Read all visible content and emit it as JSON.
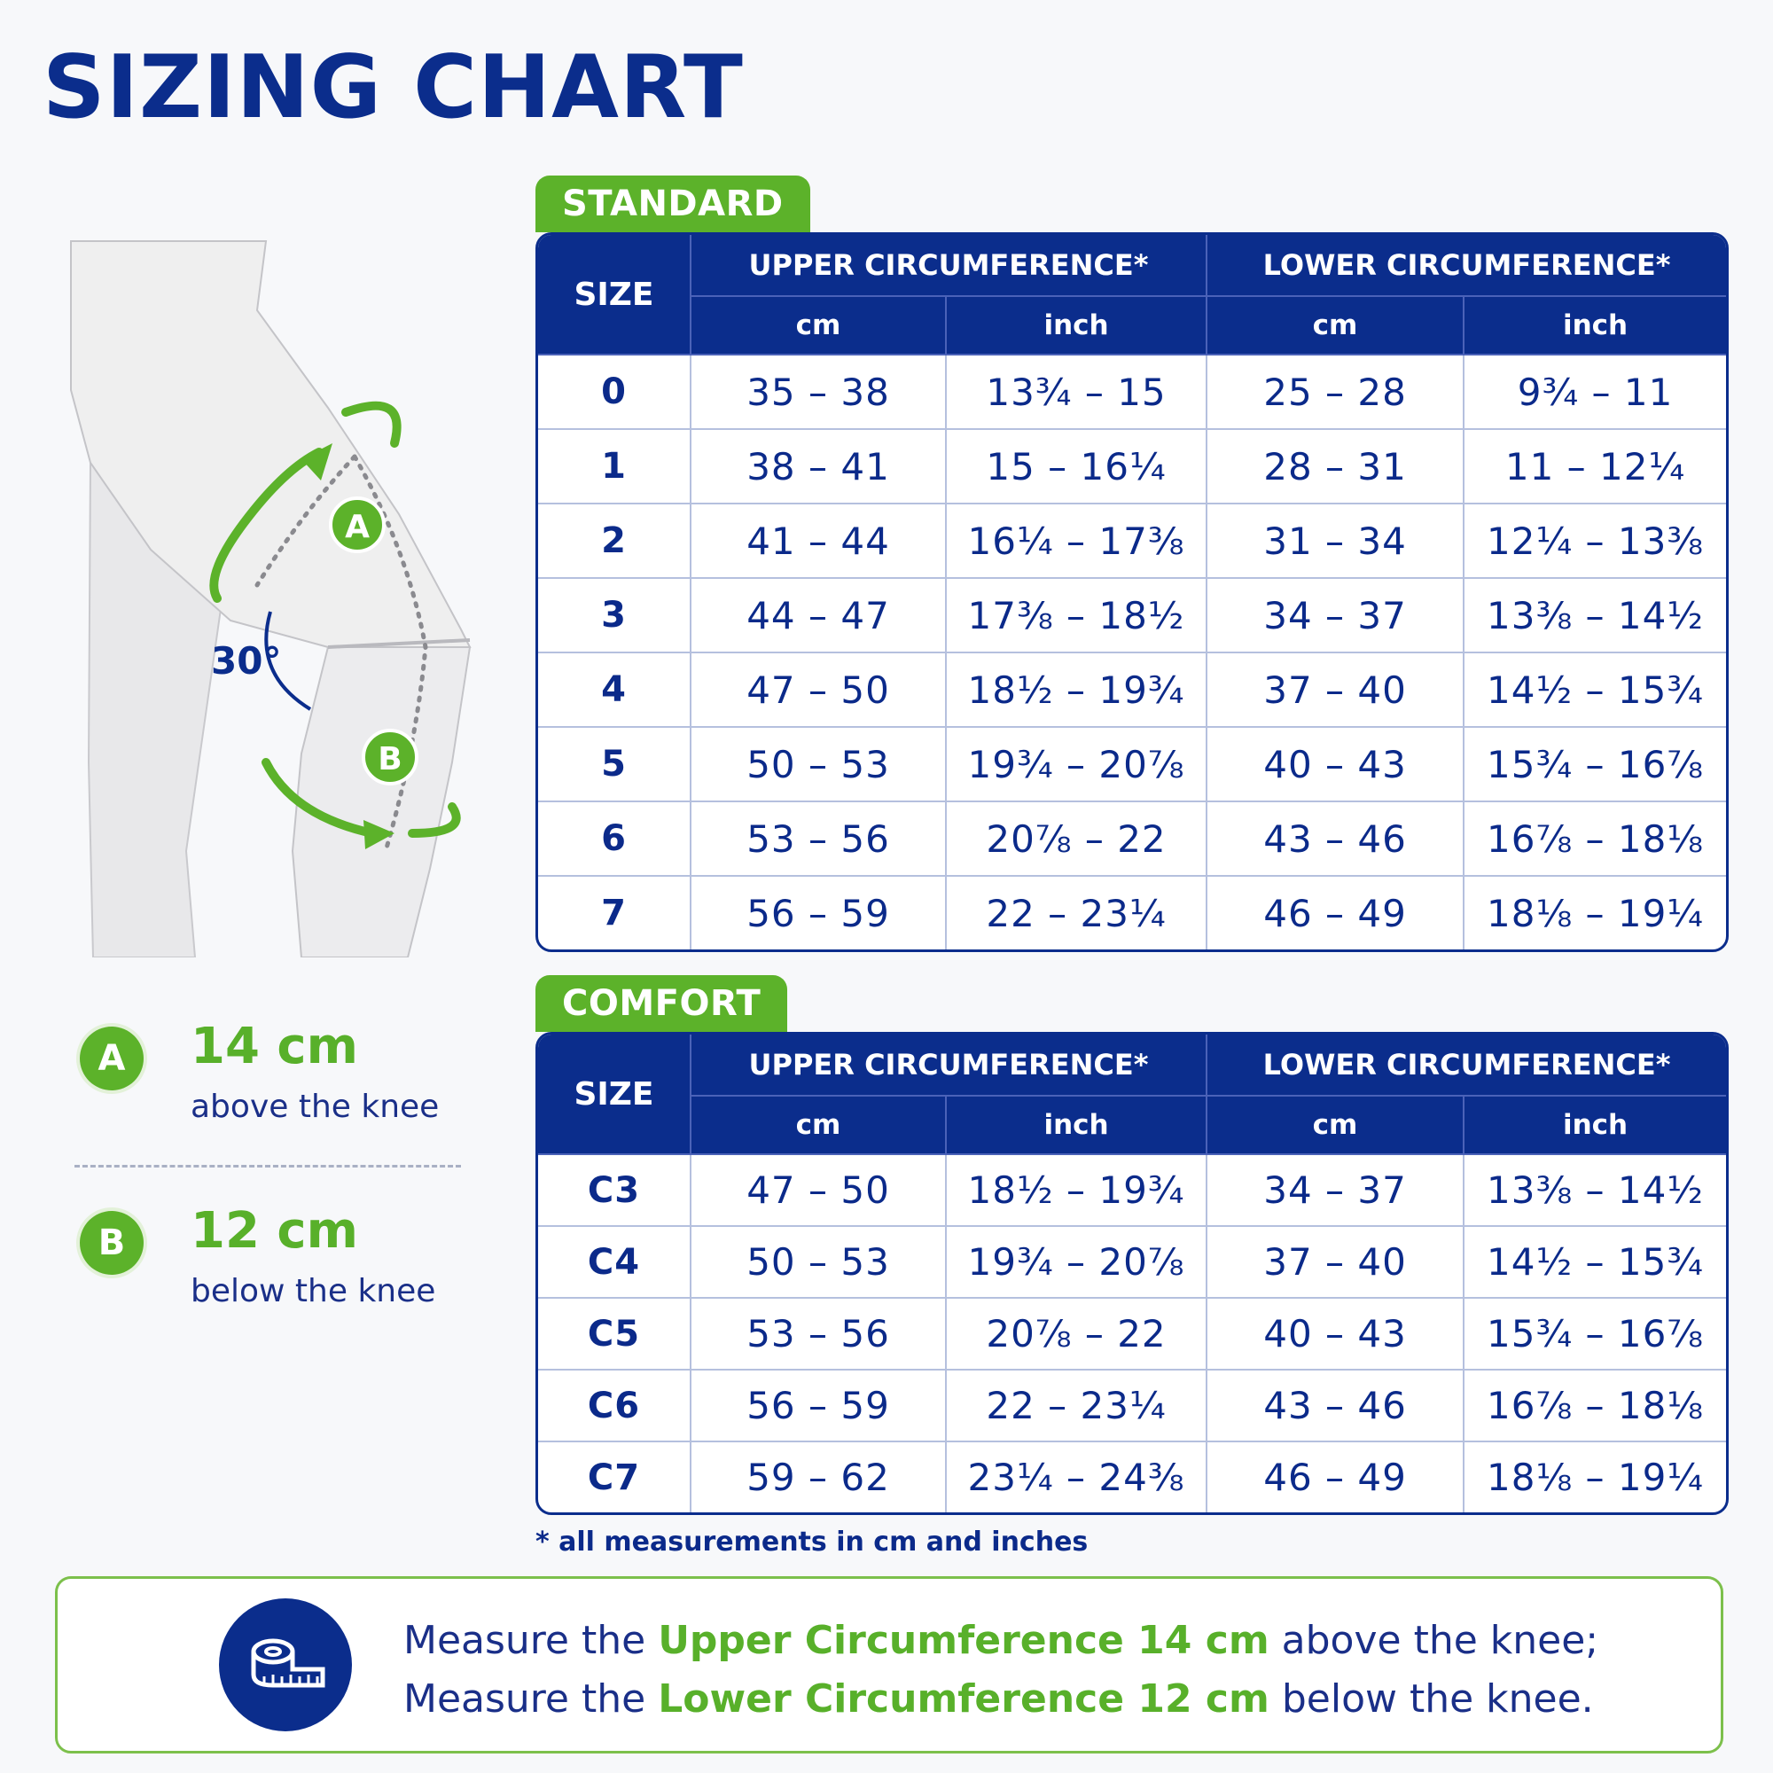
{
  "title": "SIZING CHART",
  "diagram": {
    "angle_label": "30°",
    "marker_a": "A",
    "marker_b": "B"
  },
  "legend": [
    {
      "badge": "A",
      "distance": "14 cm",
      "description": "above the knee"
    },
    {
      "badge": "B",
      "distance": "12 cm",
      "description": "below the knee"
    }
  ],
  "tables": {
    "headers": {
      "size": "SIZE",
      "upper": "UPPER CIRCUMFERENCE*",
      "lower": "LOWER CIRCUMFERENCE*",
      "cm": "cm",
      "inch": "inch"
    },
    "standard": {
      "label": "STANDARD",
      "rows": [
        [
          "0",
          "35 – 38",
          "13¾ – 15",
          "25 – 28",
          "9¾ – 11"
        ],
        [
          "1",
          "38 – 41",
          "15 – 16¼",
          "28 – 31",
          "11 – 12¼"
        ],
        [
          "2",
          "41 – 44",
          "16¼ – 17⅜",
          "31 – 34",
          "12¼ – 13⅜"
        ],
        [
          "3",
          "44 – 47",
          "17⅜ – 18½",
          "34 – 37",
          "13⅜ – 14½"
        ],
        [
          "4",
          "47 – 50",
          "18½ – 19¾",
          "37 – 40",
          "14½ – 15¾"
        ],
        [
          "5",
          "50 – 53",
          "19¾ – 20⅞",
          "40 – 43",
          "15¾ – 16⅞"
        ],
        [
          "6",
          "53 – 56",
          "20⅞ – 22",
          "43 – 46",
          "16⅞ – 18⅛"
        ],
        [
          "7",
          "56 – 59",
          "22 – 23¼",
          "46 – 49",
          "18⅛ – 19¼"
        ]
      ]
    },
    "comfort": {
      "label": "COMFORT",
      "rows": [
        [
          "C3",
          "47 – 50",
          "18½ – 19¾",
          "34 – 37",
          "13⅜ – 14½"
        ],
        [
          "C4",
          "50 – 53",
          "19¾ – 20⅞",
          "37 – 40",
          "14½ – 15¾"
        ],
        [
          "C5",
          "53 – 56",
          "20⅞ – 22",
          "40 – 43",
          "15¾ – 16⅞"
        ],
        [
          "C6",
          "56 – 59",
          "22 – 23¼",
          "43 – 46",
          "16⅞ – 18⅛"
        ],
        [
          "C7",
          "59 – 62",
          "23¼ – 24⅜",
          "46 – 49",
          "18⅛ – 19¼"
        ]
      ]
    }
  },
  "footnote": "* all measurements in cm and inches",
  "instructions": {
    "icon": "measuring-tape-icon",
    "line1": {
      "pre": "Measure the ",
      "highlight": "Upper Circumference 14 cm",
      "post": " above the knee;"
    },
    "line2": {
      "pre": "Measure the ",
      "highlight": "Lower Circumference 12 cm",
      "post": " below the knee."
    }
  },
  "colors": {
    "navy": "#0b2d8c",
    "green": "#5cb22a"
  }
}
